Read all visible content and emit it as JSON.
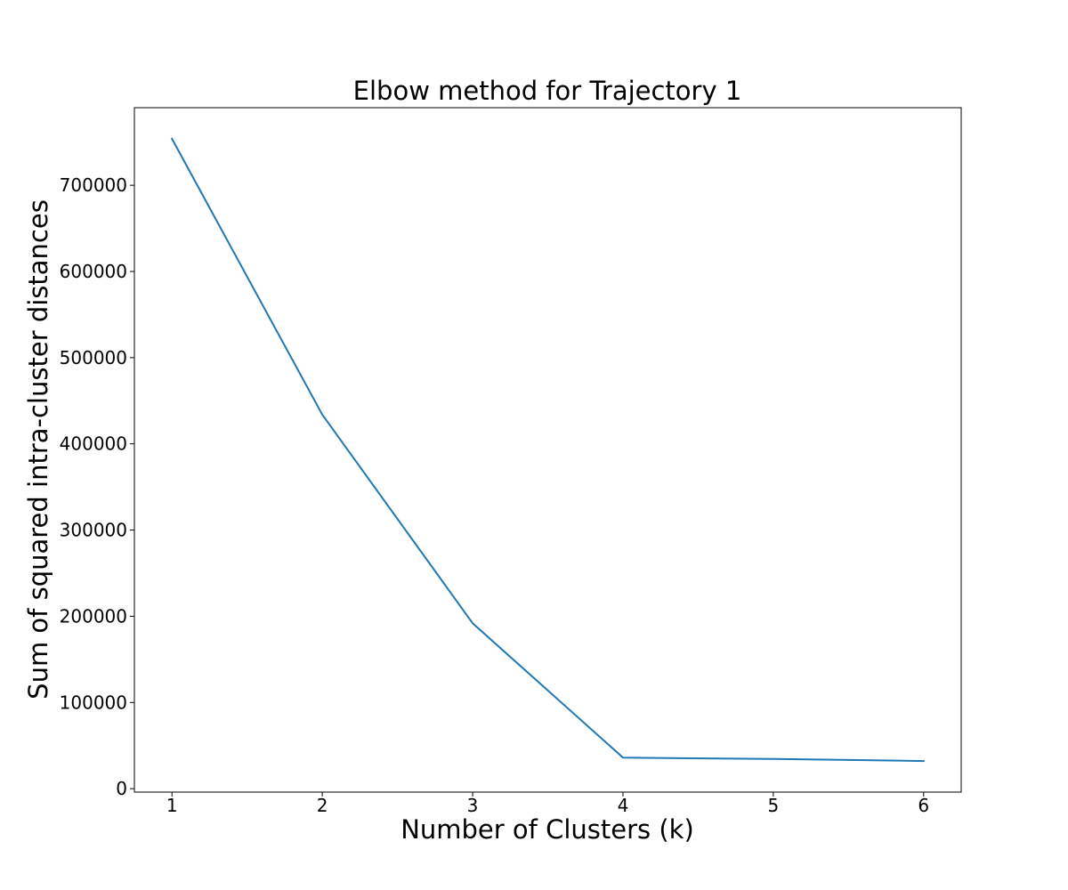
{
  "chart_data": {
    "type": "line",
    "title": "Elbow method for Trajectory 1",
    "xlabel": "Number of Clusters (k)",
    "ylabel": "Sum of squared intra-cluster distances",
    "x": [
      1,
      2,
      3,
      4,
      5,
      6
    ],
    "series": [
      {
        "values": [
          754000,
          434000,
          192000,
          36000,
          34500,
          32000
        ],
        "color": "#1f77b4"
      }
    ],
    "xlim": [
      0.75,
      6.25
    ],
    "ylim": [
      -4000,
      790000
    ],
    "xticks": [
      1,
      2,
      3,
      4,
      5,
      6
    ],
    "xtick_labels": [
      "1",
      "2",
      "3",
      "4",
      "5",
      "6"
    ],
    "yticks": [
      0,
      100000,
      200000,
      300000,
      400000,
      500000,
      600000,
      700000
    ],
    "ytick_labels": [
      "0",
      "100000",
      "200000",
      "300000",
      "400000",
      "500000",
      "600000",
      "700000"
    ],
    "grid": false,
    "legend": "none"
  }
}
